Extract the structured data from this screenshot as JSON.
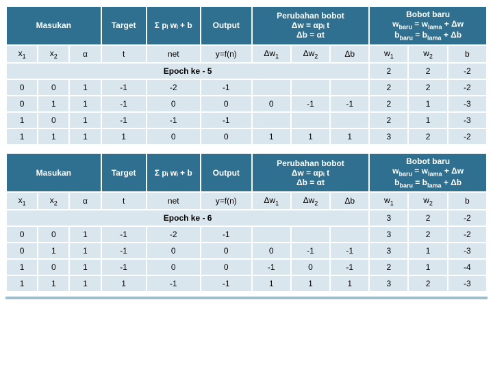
{
  "colors": {
    "header_bg": "#2f6f8f",
    "cell_bg": "#d9e6ed",
    "border": "#ffffff",
    "text_header": "#ffffff",
    "text_body": "#000000",
    "footer": "#9fbecb"
  },
  "headers": {
    "masukan": "Masukan",
    "target": "Target",
    "sum": "Σ pᵢ wᵢ + b",
    "output": "Output",
    "perubahan": "Perubahan bobot",
    "perubahan_line2": "Δw = αpᵢ t",
    "perubahan_line3": "Δb = αt",
    "bobot": "Bobot baru",
    "bobot_line2_html": "w<sub>baru</sub> = w<sub>lama</sub> + Δw",
    "bobot_line3_html": "b<sub>baru</sub> = b<sub>lama</sub> + Δb"
  },
  "subheaders": {
    "x1_html": "x<sub>1</sub>",
    "x2_html": "x<sub>2</sub>",
    "alpha": "α",
    "t": "t",
    "net": "net",
    "yfn": "y=f(n)",
    "dw1_html": "Δw<sub>1</sub>",
    "dw2_html": "Δw<sub>2</sub>",
    "db": "Δb",
    "w1_html": "w<sub>1</sub>",
    "w2_html": "w<sub>2</sub>",
    "b": "b"
  },
  "tables": [
    {
      "epoch_label": "Epoch ke - 5",
      "epoch_tail": [
        "2",
        "2",
        "-2"
      ],
      "rows": [
        {
          "c": [
            "0",
            "0",
            "1",
            "-1",
            "-2",
            "-1",
            "",
            "",
            "",
            "2",
            "2",
            "-2"
          ]
        },
        {
          "c": [
            "0",
            "1",
            "1",
            "-1",
            "0",
            "0",
            "0",
            "-1",
            "-1",
            "2",
            "1",
            "-3"
          ]
        },
        {
          "c": [
            "1",
            "0",
            "1",
            "-1",
            "-1",
            "-1",
            "",
            "",
            "",
            "2",
            "1",
            "-3"
          ]
        },
        {
          "c": [
            "1",
            "1",
            "1",
            "1",
            "0",
            "0",
            "1",
            "1",
            "1",
            "3",
            "2",
            "-2"
          ]
        }
      ]
    },
    {
      "epoch_label": "Epoch ke - 6",
      "epoch_tail": [
        "3",
        "2",
        "-2"
      ],
      "rows": [
        {
          "c": [
            "0",
            "0",
            "1",
            "-1",
            "-2",
            "-1",
            "",
            "",
            "",
            "3",
            "2",
            "-2"
          ]
        },
        {
          "c": [
            "0",
            "1",
            "1",
            "-1",
            "0",
            "0",
            "0",
            "-1",
            "-1",
            "3",
            "1",
            "-3"
          ]
        },
        {
          "c": [
            "1",
            "0",
            "1",
            "-1",
            "0",
            "0",
            "-1",
            "0",
            "-1",
            "2",
            "1",
            "-4"
          ]
        },
        {
          "c": [
            "1",
            "1",
            "1",
            "1",
            "-1",
            "-1",
            "1",
            "1",
            "1",
            "3",
            "2",
            "-3"
          ]
        }
      ]
    }
  ]
}
